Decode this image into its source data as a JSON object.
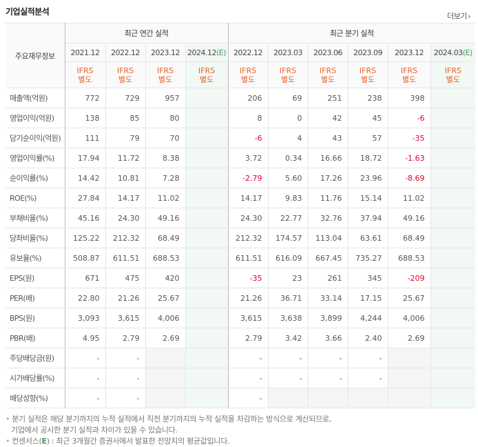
{
  "header": {
    "title": "기업실적분석",
    "more_label": "더보기"
  },
  "table": {
    "row_header_label": "주요재무정보",
    "groups": [
      {
        "label": "최근 연간 실적",
        "span": 4
      },
      {
        "label": "최근 분기 실적",
        "span": 6
      }
    ],
    "periods": [
      {
        "label": "2021.12",
        "est": ""
      },
      {
        "label": "2022.12",
        "est": ""
      },
      {
        "label": "2023.12",
        "est": ""
      },
      {
        "label": "2024.12",
        "est": "(E)"
      },
      {
        "label": "2022.12",
        "est": ""
      },
      {
        "label": "2023.03",
        "est": ""
      },
      {
        "label": "2023.06",
        "est": ""
      },
      {
        "label": "2023.09",
        "est": ""
      },
      {
        "label": "2023.12",
        "est": ""
      },
      {
        "label": "2024.03",
        "est": "(E)"
      }
    ],
    "ifrs_line1": "IFRS",
    "ifrs_line2": "별도",
    "rows": [
      {
        "label": "매출액(억원)",
        "values": [
          "772",
          "729",
          "957",
          "",
          "206",
          "69",
          "251",
          "238",
          "398",
          ""
        ]
      },
      {
        "label": "영업이익(억원)",
        "values": [
          "138",
          "85",
          "80",
          "",
          "8",
          "0",
          "42",
          "45",
          "-6",
          ""
        ]
      },
      {
        "label": "당기순이익(억원)",
        "values": [
          "111",
          "79",
          "70",
          "",
          "-6",
          "4",
          "43",
          "57",
          "-35",
          ""
        ]
      },
      {
        "label": "영업이익률(%)",
        "values": [
          "17.94",
          "11.72",
          "8.38",
          "",
          "3.72",
          "0.34",
          "16.66",
          "18.72",
          "-1.63",
          ""
        ]
      },
      {
        "label": "순이익률(%)",
        "values": [
          "14.42",
          "10.81",
          "7.28",
          "",
          "-2.79",
          "5.60",
          "17.26",
          "23.96",
          "-8.69",
          ""
        ]
      },
      {
        "label": "ROE(%)",
        "values": [
          "27.84",
          "14.17",
          "11.02",
          "",
          "14.17",
          "9.83",
          "11.76",
          "15.14",
          "11.02",
          ""
        ]
      },
      {
        "label": "부채비율(%)",
        "values": [
          "45.16",
          "24.30",
          "49.16",
          "",
          "24.30",
          "22.77",
          "32.76",
          "37.94",
          "49.16",
          ""
        ]
      },
      {
        "label": "당좌비율(%)",
        "values": [
          "125.22",
          "212.32",
          "68.49",
          "",
          "212.32",
          "174.57",
          "113.04",
          "63.61",
          "68.49",
          ""
        ]
      },
      {
        "label": "유보율(%)",
        "values": [
          "508.87",
          "611.51",
          "688.53",
          "",
          "611.51",
          "616.09",
          "667.45",
          "735.27",
          "688.53",
          ""
        ]
      },
      {
        "label": "EPS(원)",
        "values": [
          "671",
          "475",
          "420",
          "",
          "-35",
          "23",
          "261",
          "345",
          "-209",
          ""
        ]
      },
      {
        "label": "PER(배)",
        "values": [
          "22.80",
          "21.26",
          "25.67",
          "",
          "21.26",
          "36.71",
          "33.14",
          "17.15",
          "25.67",
          ""
        ]
      },
      {
        "label": "BPS(원)",
        "values": [
          "3,093",
          "3,615",
          "4,006",
          "",
          "3,615",
          "3,638",
          "3,899",
          "4,244",
          "4,006",
          ""
        ]
      },
      {
        "label": "PBR(배)",
        "values": [
          "4.95",
          "2.79",
          "2.69",
          "",
          "2.79",
          "3.42",
          "3.66",
          "2.40",
          "2.69",
          ""
        ]
      },
      {
        "label": "주당배당금(원)",
        "values": [
          "-",
          "-",
          null,
          "",
          "-",
          "-",
          "-",
          "-",
          null,
          ""
        ]
      },
      {
        "label": "시가배당률(%)",
        "values": [
          "-",
          "-",
          null,
          "",
          "-",
          "-",
          "-",
          "-",
          null,
          ""
        ]
      },
      {
        "label": "배당성향(%)",
        "values": [
          "-",
          "-",
          null,
          "",
          "-",
          null,
          null,
          null,
          null,
          ""
        ]
      }
    ]
  },
  "notes": {
    "line1": "분기 실적은 해당 분기까지의 누적 실적에서 직전 분기까지의 누적 실적을 차감하는 방식으로 계산되므로,",
    "line2": "기업에서 공시한 분기 실적과 차이가 있을 수 있습니다.",
    "line3_pre": "컨센서스(",
    "line3_e": "E",
    "line3_post": ") : 최근 3개월간 증권사에서 발표한 전망치의 평균값입니다."
  },
  "colors": {
    "ifrs": "#e5632c",
    "negative": "#e0002a",
    "estimate": "#3c9a5c",
    "estimate_bg": "#f2f8f3"
  }
}
